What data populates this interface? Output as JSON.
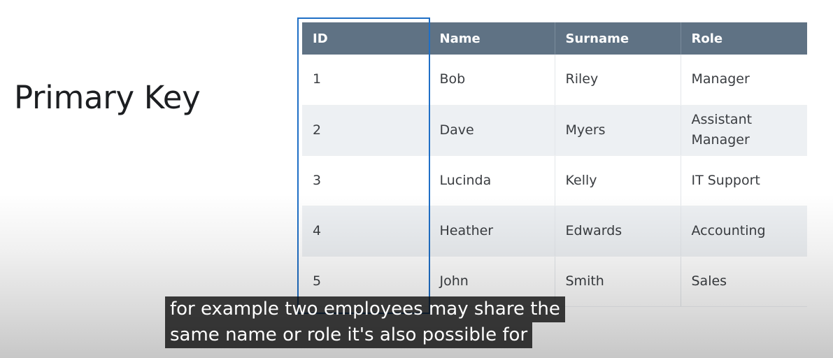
{
  "slide": {
    "title": "Primary Key"
  },
  "table": {
    "headers": [
      "ID",
      "Name",
      "Surname",
      "Role"
    ],
    "rows": [
      [
        "1",
        "Bob",
        "Riley",
        "Manager"
      ],
      [
        "2",
        "Dave",
        "Myers",
        "Assistant Manager"
      ],
      [
        "3",
        "Lucinda",
        "Kelly",
        "IT Support"
      ],
      [
        "4",
        "Heather",
        "Edwards",
        "Accounting"
      ],
      [
        "5",
        "John",
        "Smith",
        "Sales"
      ]
    ]
  },
  "highlight": {
    "column": "ID",
    "color": "#1f6fc6"
  },
  "captions": [
    "for example two employees may share the",
    "same name or role it's also possible for"
  ],
  "colors": {
    "header_bg": "#5f7284",
    "header_text": "#ffffff",
    "row_alt_bg": "#edf0f3",
    "title_text": "#1c1e21"
  }
}
